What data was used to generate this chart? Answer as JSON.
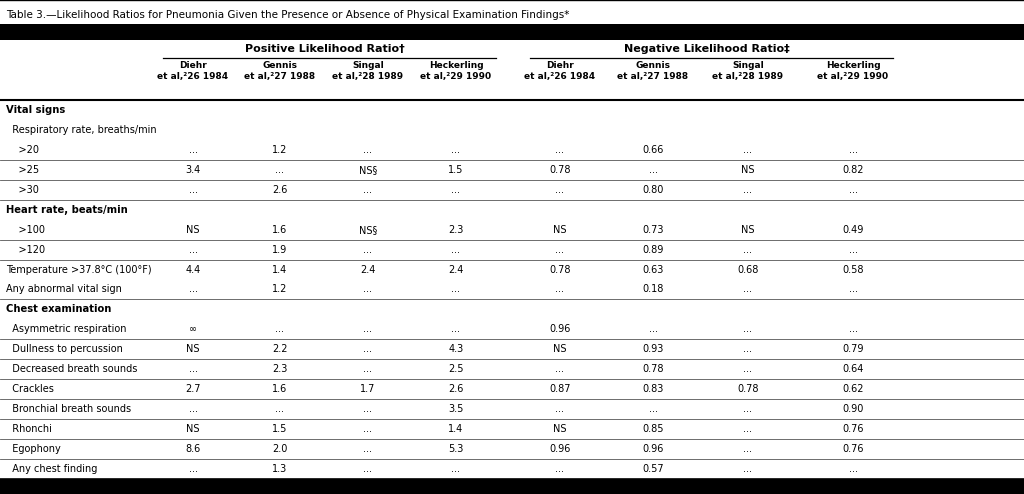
{
  "title": "Table 3.—Likelihood Ratios for Pneumonia Given the Presence or Absence of Physical Examination Findings*",
  "plr_label": "Positive Likelihood Ratio†",
  "nlr_label": "Negative Likelihood Ratio‡",
  "header_labels": [
    "Diehr\net al,²26 1984",
    "Gennis\net al,²27 1988",
    "Singal\net al,²28 1989",
    "Heckerling\net al,²29 1990",
    "Diehr\net al,²26 1984",
    "Gennis\net al,²27 1988",
    "Singal\net al,²28 1989",
    "Heckerling\net al,²29 1990"
  ],
  "rows": [
    {
      "label": "Vital signs",
      "indent": 0,
      "bold": true,
      "values": [
        "",
        "",
        "",
        "",
        "",
        "",
        "",
        ""
      ],
      "sep": false
    },
    {
      "label": "  Respiratory rate, breaths/min",
      "indent": 1,
      "bold": false,
      "values": [
        "",
        "",
        "",
        "",
        "",
        "",
        "",
        ""
      ],
      "sep": false
    },
    {
      "label": "    >20",
      "indent": 2,
      "bold": false,
      "values": [
        "...",
        "1.2",
        "...",
        "...",
        "...",
        "0.66",
        "...",
        "..."
      ],
      "sep": false
    },
    {
      "label": "    >25",
      "indent": 2,
      "bold": false,
      "values": [
        "3.4",
        "...",
        "NS§",
        "1.5",
        "0.78",
        "...",
        "NS",
        "0.82"
      ],
      "sep": true
    },
    {
      "label": "    >30",
      "indent": 2,
      "bold": false,
      "values": [
        "...",
        "2.6",
        "...",
        "...",
        "...",
        "0.80",
        "...",
        "..."
      ],
      "sep": true
    },
    {
      "label": "Heart rate, beats/min",
      "indent": 0,
      "bold": true,
      "values": [
        "",
        "",
        "",
        "",
        "",
        "",
        "",
        ""
      ],
      "sep": true
    },
    {
      "label": "    >100",
      "indent": 2,
      "bold": false,
      "values": [
        "NS",
        "1.6",
        "NS§",
        "2.3",
        "NS",
        "0.73",
        "NS",
        "0.49"
      ],
      "sep": false
    },
    {
      "label": "    >120",
      "indent": 2,
      "bold": false,
      "values": [
        "...",
        "1.9",
        "...",
        "...",
        "...",
        "0.89",
        "...",
        "..."
      ],
      "sep": true
    },
    {
      "label": "Temperature >37.8°C (100°F)",
      "indent": 0,
      "bold": false,
      "values": [
        "4.4",
        "1.4",
        "2.4",
        "2.4",
        "0.78",
        "0.63",
        "0.68",
        "0.58"
      ],
      "sep": true
    },
    {
      "label": "Any abnormal vital sign",
      "indent": 0,
      "bold": false,
      "values": [
        "...",
        "1.2",
        "...",
        "...",
        "...",
        "0.18",
        "...",
        "..."
      ],
      "sep": false
    },
    {
      "label": "Chest examination",
      "indent": 0,
      "bold": true,
      "values": [
        "",
        "",
        "",
        "",
        "",
        "",
        "",
        ""
      ],
      "sep": true
    },
    {
      "label": "  Asymmetric respiration",
      "indent": 1,
      "bold": false,
      "values": [
        "∞",
        "...",
        "...",
        "...",
        "0.96",
        "...",
        "...",
        "..."
      ],
      "sep": false
    },
    {
      "label": "  Dullness to percussion",
      "indent": 1,
      "bold": false,
      "values": [
        "NS",
        "2.2",
        "...",
        "4.3",
        "NS",
        "0.93",
        "...",
        "0.79"
      ],
      "sep": true
    },
    {
      "label": "  Decreased breath sounds",
      "indent": 1,
      "bold": false,
      "values": [
        "...",
        "2.3",
        "...",
        "2.5",
        "...",
        "0.78",
        "...",
        "0.64"
      ],
      "sep": true
    },
    {
      "label": "  Crackles",
      "indent": 1,
      "bold": false,
      "values": [
        "2.7",
        "1.6",
        "1.7",
        "2.6",
        "0.87",
        "0.83",
        "0.78",
        "0.62"
      ],
      "sep": true
    },
    {
      "label": "  Bronchial breath sounds",
      "indent": 1,
      "bold": false,
      "values": [
        "...",
        "...",
        "...",
        "3.5",
        "...",
        "...",
        "...",
        "0.90"
      ],
      "sep": true
    },
    {
      "label": "  Rhonchi",
      "indent": 1,
      "bold": false,
      "values": [
        "NS",
        "1.5",
        "...",
        "1.4",
        "NS",
        "0.85",
        "...",
        "0.76"
      ],
      "sep": true
    },
    {
      "label": "  Egophony",
      "indent": 1,
      "bold": false,
      "values": [
        "8.6",
        "2.0",
        "...",
        "5.3",
        "0.96",
        "0.96",
        "...",
        "0.76"
      ],
      "sep": true
    },
    {
      "label": "  Any chest finding",
      "indent": 1,
      "bold": false,
      "values": [
        "...",
        "1.3",
        "...",
        "...",
        "...",
        "0.57",
        "...",
        "..."
      ],
      "sep": true
    }
  ],
  "bg_color": "#ffffff",
  "black_bar_color": "#000000"
}
